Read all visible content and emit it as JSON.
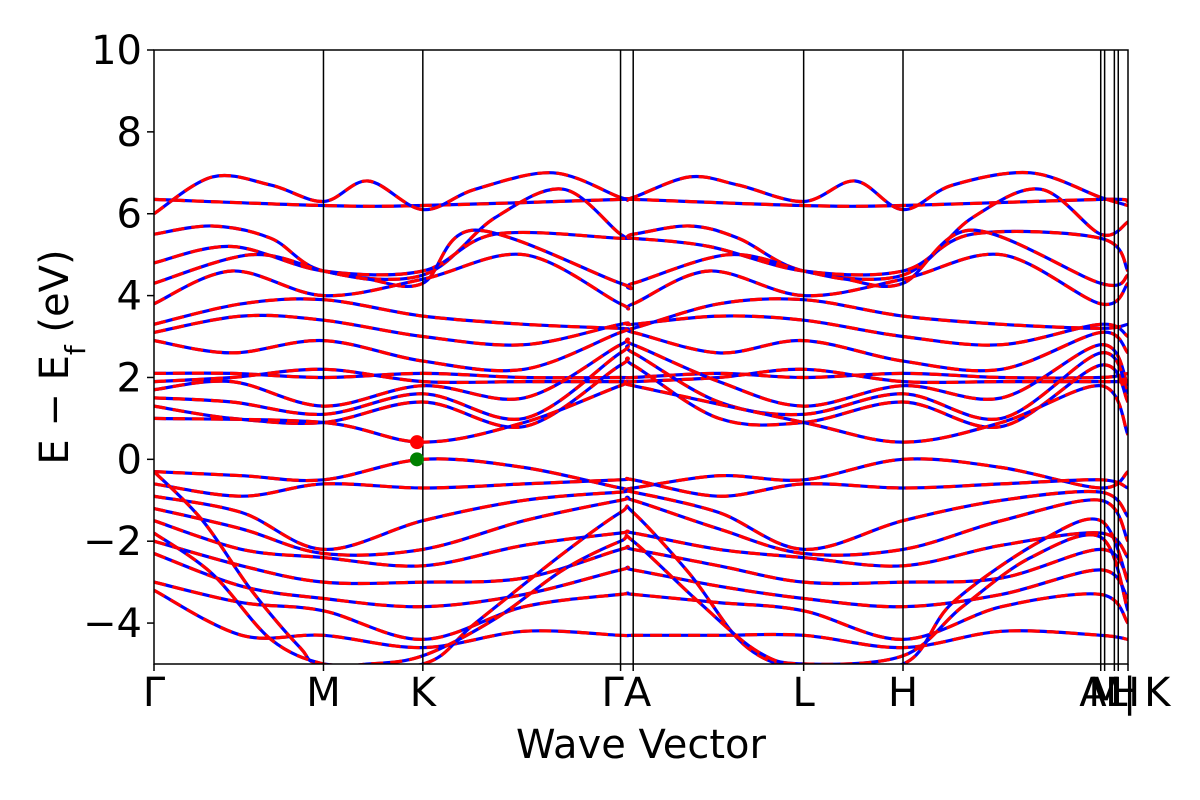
{
  "chart_data": {
    "type": "line",
    "xlabel": "Wave Vector",
    "ylabel": "E − E_f (eV)",
    "ylabel_parts": {
      "lead": "E − E",
      "sub": "f",
      "tail": " (eV)"
    },
    "ylim": [
      -5,
      10
    ],
    "yticks": [
      -4,
      -2,
      0,
      2,
      4,
      6,
      8,
      10
    ],
    "xlim": [
      0,
      1
    ],
    "kpoints": [
      {
        "label": "Γ",
        "x": 0.0
      },
      {
        "label": "M",
        "x": 0.174
      },
      {
        "label": "K",
        "x": 0.276
      },
      {
        "label": "Γ",
        "x": 0.479
      },
      {
        "label": "A",
        "x": 0.492
      },
      {
        "label": "L",
        "x": 0.667
      },
      {
        "label": "H",
        "x": 0.769
      },
      {
        "label": "A",
        "x": 0.972
      },
      {
        "label": "M",
        "x": 0.976
      },
      {
        "label": "L",
        "x": 0.986
      },
      {
        "label": "H",
        "x": 0.99
      },
      {
        "label": "K",
        "x": 1.0
      }
    ],
    "kpoint_tick_labels": [
      {
        "text": "Γ",
        "x": 0.0
      },
      {
        "text": "M",
        "x": 0.174
      },
      {
        "text": "K",
        "x": 0.276
      },
      {
        "text": "ΓA",
        "x": 0.485
      },
      {
        "text": "L",
        "x": 0.667
      },
      {
        "text": "H",
        "x": 0.769
      },
      {
        "text": "A",
        "x": 0.964
      },
      {
        "text": "M|",
        "x": 0.984
      },
      {
        "text": "L",
        "x": 0.988
      },
      {
        "text": "H",
        "x": 0.997
      },
      {
        "text": "K",
        "x": 1.03
      }
    ],
    "series": [
      {
        "color": "#0000ff",
        "style": "solid"
      },
      {
        "color": "#ff0000",
        "style": "dashed"
      }
    ],
    "markers": [
      {
        "label": "CBM",
        "x": 0.27,
        "y": 0.42,
        "color": "#ff0000"
      },
      {
        "label": "VBM",
        "x": 0.27,
        "y": 0.0,
        "color": "#008000"
      }
    ],
    "bands": [
      {
        "x": [
          0,
          0.174,
          0.276,
          0.479,
          0.492,
          0.667,
          0.769,
          0.972,
          1.0
        ],
        "y": [
          6.35,
          6.2,
          6.2,
          6.35,
          6.35,
          6.2,
          6.2,
          6.35,
          6.3
        ]
      },
      {
        "x": [
          0,
          0.06,
          0.12,
          0.174,
          0.22,
          0.276,
          0.33,
          0.41,
          0.479,
          0.492,
          0.55,
          0.6,
          0.667,
          0.72,
          0.769,
          0.82,
          0.9,
          0.972,
          1.0
        ],
        "y": [
          6.0,
          6.9,
          6.7,
          6.3,
          6.8,
          6.1,
          6.6,
          7.0,
          6.4,
          6.4,
          6.9,
          6.7,
          6.3,
          6.8,
          6.1,
          6.7,
          7.0,
          6.4,
          6.2
        ]
      },
      {
        "x": [
          0,
          0.06,
          0.12,
          0.174,
          0.276,
          0.35,
          0.42,
          0.479,
          0.492,
          0.55,
          0.6,
          0.667,
          0.769,
          0.84,
          0.91,
          0.972,
          1.0
        ],
        "y": [
          5.5,
          5.7,
          5.4,
          4.6,
          4.5,
          5.9,
          6.6,
          5.5,
          5.5,
          5.7,
          5.4,
          4.6,
          4.5,
          5.9,
          6.6,
          5.5,
          5.8
        ]
      },
      {
        "x": [
          0,
          0.08,
          0.174,
          0.276,
          0.35,
          0.479,
          0.492,
          0.57,
          0.667,
          0.769,
          0.84,
          0.972,
          1.0
        ],
        "y": [
          4.8,
          5.2,
          4.6,
          4.6,
          5.5,
          5.4,
          5.4,
          5.2,
          4.6,
          4.6,
          5.5,
          5.4,
          4.6
        ]
      },
      {
        "x": [
          0,
          0.1,
          0.174,
          0.22,
          0.276,
          0.33,
          0.479,
          0.492,
          0.59,
          0.667,
          0.71,
          0.769,
          0.84,
          0.972,
          1.0
        ],
        "y": [
          4.3,
          5.0,
          4.6,
          4.4,
          4.3,
          5.6,
          4.3,
          4.3,
          5.0,
          4.6,
          4.4,
          4.3,
          5.6,
          4.3,
          4.5
        ]
      },
      {
        "x": [
          0,
          0.08,
          0.174,
          0.276,
          0.38,
          0.479,
          0.492,
          0.57,
          0.667,
          0.769,
          0.87,
          0.972,
          1.0
        ],
        "y": [
          3.8,
          4.6,
          4.0,
          4.4,
          5.0,
          3.8,
          3.8,
          4.6,
          4.0,
          4.4,
          5.0,
          3.8,
          4.3
        ]
      },
      {
        "x": [
          0,
          0.09,
          0.174,
          0.276,
          0.38,
          0.479,
          0.492,
          0.58,
          0.667,
          0.769,
          0.87,
          0.972,
          1.0
        ],
        "y": [
          3.3,
          3.8,
          3.9,
          3.5,
          3.3,
          3.2,
          3.2,
          3.8,
          3.9,
          3.5,
          3.3,
          3.2,
          3.3
        ]
      },
      {
        "x": [
          0,
          0.09,
          0.174,
          0.276,
          0.38,
          0.479,
          0.492,
          0.58,
          0.667,
          0.769,
          0.87,
          0.972,
          1.0
        ],
        "y": [
          3.1,
          3.5,
          3.4,
          3.0,
          2.8,
          3.3,
          3.3,
          3.5,
          3.4,
          3.0,
          2.8,
          3.3,
          3.0
        ]
      },
      {
        "x": [
          0,
          0.08,
          0.174,
          0.276,
          0.38,
          0.479,
          0.492,
          0.58,
          0.667,
          0.769,
          0.87,
          0.972,
          1.0
        ],
        "y": [
          2.9,
          2.6,
          2.9,
          2.4,
          2.2,
          3.1,
          3.1,
          2.6,
          2.9,
          2.4,
          2.2,
          3.1,
          2.6
        ]
      },
      {
        "x": [
          0,
          0.08,
          0.174,
          0.276,
          0.38,
          0.479,
          0.492,
          0.58,
          0.667,
          0.769,
          0.87,
          0.972,
          1.0
        ],
        "y": [
          2.1,
          2.1,
          2.0,
          2.1,
          2.0,
          2.0,
          2.0,
          2.1,
          2.0,
          2.1,
          2.0,
          2.0,
          2.1
        ]
      },
      {
        "x": [
          0,
          0.08,
          0.174,
          0.276,
          0.38,
          0.479,
          0.492,
          0.58,
          0.667,
          0.769,
          0.87,
          0.972,
          1.0
        ],
        "y": [
          1.9,
          2.0,
          2.2,
          1.9,
          1.9,
          1.9,
          1.9,
          2.0,
          2.2,
          1.9,
          1.9,
          1.9,
          1.9
        ]
      },
      {
        "x": [
          0,
          0.08,
          0.174,
          0.276,
          0.38,
          0.479,
          0.492,
          0.58,
          0.667,
          0.769,
          0.87,
          0.972,
          1.0
        ],
        "y": [
          1.7,
          1.9,
          1.3,
          1.8,
          1.5,
          2.8,
          2.8,
          1.9,
          1.3,
          1.8,
          1.5,
          2.8,
          1.8
        ]
      },
      {
        "x": [
          0,
          0.08,
          0.174,
          0.276,
          0.38,
          0.479,
          0.492,
          0.58,
          0.667,
          0.769,
          0.87,
          0.972,
          1.0
        ],
        "y": [
          1.5,
          1.4,
          1.1,
          1.6,
          1.0,
          2.6,
          2.6,
          1.4,
          1.1,
          1.6,
          1.0,
          2.6,
          1.6
        ]
      },
      {
        "x": [
          0,
          0.08,
          0.174,
          0.276,
          0.38,
          0.479,
          0.492,
          0.58,
          0.667,
          0.769,
          0.87,
          0.972,
          1.0
        ],
        "y": [
          1.3,
          1.0,
          0.9,
          1.4,
          0.8,
          2.3,
          2.3,
          1.0,
          0.9,
          1.4,
          0.8,
          2.3,
          1.4
        ]
      },
      {
        "x": [
          0,
          0.174,
          0.276,
          0.38,
          0.479,
          0.492,
          0.667,
          0.769,
          0.87,
          0.972,
          1.0
        ],
        "y": [
          1.0,
          0.9,
          0.42,
          0.9,
          1.8,
          1.8,
          0.9,
          0.42,
          0.9,
          1.8,
          0.6
        ]
      },
      {
        "x": [
          0,
          0.09,
          0.174,
          0.276,
          0.38,
          0.479,
          0.492,
          0.58,
          0.667,
          0.769,
          0.87,
          0.972,
          1.0
        ],
        "y": [
          -0.3,
          -0.4,
          -0.5,
          0.0,
          -0.2,
          -0.7,
          -0.7,
          -0.4,
          -0.5,
          0.0,
          -0.2,
          -0.7,
          -0.3
        ]
      },
      {
        "x": [
          0,
          0.09,
          0.174,
          0.276,
          0.38,
          0.479,
          0.492,
          0.58,
          0.667,
          0.769,
          0.87,
          0.972,
          1.0
        ],
        "y": [
          -0.6,
          -0.9,
          -0.6,
          -0.7,
          -0.6,
          -0.5,
          -0.5,
          -0.9,
          -0.6,
          -0.7,
          -0.6,
          -0.5,
          -0.7
        ]
      },
      {
        "x": [
          0,
          0.09,
          0.174,
          0.276,
          0.38,
          0.479,
          0.492,
          0.58,
          0.667,
          0.769,
          0.87,
          0.972,
          1.0
        ],
        "y": [
          -0.9,
          -1.3,
          -2.2,
          -1.5,
          -1.0,
          -0.8,
          -0.8,
          -1.3,
          -2.2,
          -1.5,
          -1.0,
          -0.8,
          -1.4
        ]
      },
      {
        "x": [
          0,
          0.09,
          0.174,
          0.276,
          0.38,
          0.479,
          0.492,
          0.58,
          0.667,
          0.769,
          0.87,
          0.972,
          1.0
        ],
        "y": [
          -1.2,
          -1.7,
          -2.3,
          -2.2,
          -1.5,
          -1.0,
          -1.0,
          -1.7,
          -2.3,
          -2.2,
          -1.5,
          -1.0,
          -2.0
        ]
      },
      {
        "x": [
          0,
          0.09,
          0.174,
          0.276,
          0.38,
          0.479,
          0.492,
          0.58,
          0.667,
          0.769,
          0.87,
          0.972,
          1.0
        ],
        "y": [
          -1.5,
          -2.2,
          -2.4,
          -2.6,
          -2.1,
          -1.8,
          -1.8,
          -2.2,
          -2.4,
          -2.6,
          -2.1,
          -1.8,
          -2.4
        ]
      },
      {
        "x": [
          0,
          0.09,
          0.174,
          0.276,
          0.38,
          0.479,
          0.492,
          0.58,
          0.667,
          0.769,
          0.87,
          0.972,
          1.0
        ],
        "y": [
          -2.0,
          -2.6,
          -3.0,
          -3.0,
          -2.9,
          -2.2,
          -2.2,
          -2.6,
          -3.0,
          -3.0,
          -2.9,
          -2.2,
          -2.9
        ]
      },
      {
        "x": [
          0,
          0.09,
          0.174,
          0.276,
          0.38,
          0.479,
          0.492,
          0.58,
          0.667,
          0.769,
          0.87,
          0.972,
          1.0
        ],
        "y": [
          -2.3,
          -3.1,
          -3.4,
          -3.6,
          -3.3,
          -2.7,
          -2.7,
          -3.1,
          -3.4,
          -3.6,
          -3.3,
          -2.7,
          -3.4
        ]
      },
      {
        "x": [
          0,
          0.09,
          0.174,
          0.276,
          0.38,
          0.479,
          0.492,
          0.58,
          0.667,
          0.769,
          0.87,
          0.972,
          1.0
        ],
        "y": [
          -3.0,
          -3.5,
          -3.7,
          -4.4,
          -3.6,
          -3.3,
          -3.3,
          -3.5,
          -3.7,
          -4.4,
          -3.6,
          -3.3,
          -4.0
        ]
      },
      {
        "x": [
          0,
          0.09,
          0.174,
          0.276,
          0.38,
          0.479,
          0.492,
          0.58,
          0.667,
          0.769,
          0.87,
          0.972,
          1.0
        ],
        "y": [
          -3.2,
          -4.3,
          -4.3,
          -4.6,
          -4.2,
          -4.3,
          -4.3,
          -4.3,
          -4.3,
          -4.6,
          -4.2,
          -4.3,
          -4.4
        ]
      },
      {
        "x": [
          0,
          0.05,
          0.1,
          0.15,
          0.174,
          0.276,
          0.33,
          0.42,
          0.479,
          0.492,
          0.55,
          0.6,
          0.64,
          0.667,
          0.769,
          0.82,
          0.91,
          0.972,
          1.0
        ],
        "y": [
          -0.3,
          -1.5,
          -3.2,
          -4.6,
          -5.0,
          -5.0,
          -4.0,
          -2.3,
          -1.3,
          -1.3,
          -2.8,
          -4.4,
          -5.0,
          -5.0,
          -5.0,
          -3.5,
          -2.0,
          -1.5,
          -3.0
        ]
      },
      {
        "x": [
          0,
          0.06,
          0.12,
          0.174,
          0.22,
          0.276,
          0.35,
          0.42,
          0.479,
          0.492,
          0.56,
          0.62,
          0.667,
          0.769,
          0.83,
          0.9,
          0.972,
          1.0
        ],
        "y": [
          -1.8,
          -2.8,
          -4.4,
          -5.0,
          -5.0,
          -4.8,
          -3.9,
          -2.7,
          -2.0,
          -2.0,
          -3.5,
          -4.7,
          -5.0,
          -4.8,
          -3.6,
          -2.4,
          -1.9,
          -3.7
        ]
      }
    ]
  }
}
